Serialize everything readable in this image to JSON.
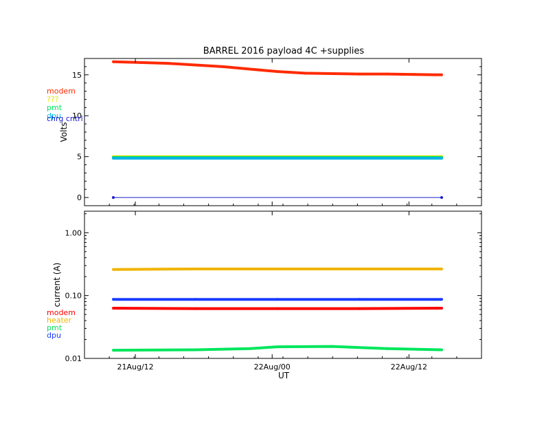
{
  "chart_data": [
    {
      "type": "scatter",
      "title": "BARREL 2016 payload 4C +supplies",
      "ylabel": "Volts",
      "ylim": [
        -1,
        17
      ],
      "ytick_labels": [
        "0",
        "5",
        "10",
        "15"
      ],
      "yticks": [
        0,
        5,
        10,
        15
      ],
      "grid": false,
      "legend": [
        "modem",
        "???",
        "pmt",
        "dpu",
        "chrg cntrl"
      ],
      "series": [
        {
          "name": "modem",
          "color": "#ff2a00",
          "x": [
            0.0,
            0.1,
            0.2,
            0.3,
            0.4,
            0.5,
            0.6,
            0.7,
            0.8,
            0.9,
            1.0,
            1.1,
            1.2
          ],
          "values": [
            16.6,
            16.5,
            16.4,
            16.2,
            16.0,
            15.7,
            15.4,
            15.2,
            15.15,
            15.1,
            15.1,
            15.05,
            15.0
          ]
        },
        {
          "name": "???",
          "color": "#e6e600",
          "x": [
            0.0,
            1.2
          ],
          "values": [
            5.0,
            5.0
          ]
        },
        {
          "name": "pmt",
          "color": "#00e65c",
          "x": [
            0.0,
            1.2
          ],
          "values": [
            4.9,
            4.9
          ]
        },
        {
          "name": "dpu",
          "color": "#00b4e6",
          "x": [
            0.0,
            1.2
          ],
          "values": [
            4.8,
            4.8
          ]
        },
        {
          "name": "chrg cntrl",
          "color": "#1a1acc",
          "x": [
            0.0,
            1.2
          ],
          "values": [
            0.0,
            0.0
          ]
        }
      ]
    },
    {
      "type": "scatter",
      "xlabel": "UT",
      "ylabel": "current (A)",
      "y_scale": "log",
      "ylim": [
        0.01,
        2.2
      ],
      "yticks": [
        0.01,
        0.1,
        1.0
      ],
      "ytick_labels": [
        "0.01",
        "0.10",
        "1.00"
      ],
      "xtick_labels": [
        "21Aug/12",
        "22Aug/00",
        "22Aug/12"
      ],
      "grid": false,
      "legend": [
        "modem",
        "heater",
        "pmt",
        "dpu"
      ],
      "series": [
        {
          "name": "modem",
          "color": "#ff0000",
          "x": [
            0.0,
            0.3,
            0.6,
            0.9,
            1.2
          ],
          "values": [
            0.063,
            0.062,
            0.062,
            0.062,
            0.063
          ]
        },
        {
          "name": "heater",
          "color": "#f0b400",
          "x": [
            0.0,
            0.3,
            0.6,
            0.9,
            1.2
          ],
          "values": [
            0.26,
            0.265,
            0.265,
            0.265,
            0.265
          ]
        },
        {
          "name": "pmt",
          "color": "#00e65c",
          "x": [
            0.0,
            0.3,
            0.5,
            0.6,
            0.8,
            1.0,
            1.2
          ],
          "values": [
            0.0135,
            0.0137,
            0.0143,
            0.0153,
            0.0155,
            0.0143,
            0.0137
          ]
        },
        {
          "name": "dpu",
          "color": "#1a3cff",
          "x": [
            0.0,
            0.3,
            0.6,
            0.9,
            1.2
          ],
          "values": [
            0.087,
            0.087,
            0.087,
            0.087,
            0.087
          ]
        }
      ]
    }
  ]
}
